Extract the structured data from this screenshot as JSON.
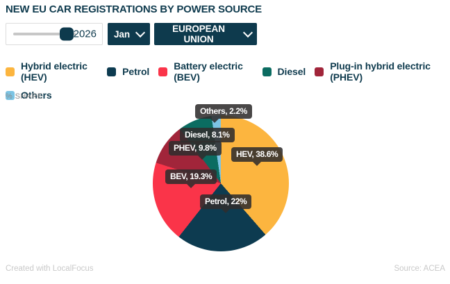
{
  "title": "NEW EU CAR REGISTRATIONS BY POWER SOURCE",
  "colors": {
    "accent": "#0E3A4D",
    "callout_bg": "rgba(48,45,46,0.88)"
  },
  "controls": {
    "year_slider": {
      "value": "2026"
    },
    "month_dropdown": {
      "value": "Jan"
    },
    "region_dropdown": {
      "value": "EUROPEAN UNION"
    }
  },
  "axis_note": "% SHARE",
  "chart_data": {
    "type": "pie",
    "title": "NEW EU CAR REGISTRATIONS BY POWER SOURCE",
    "value_unit": "% share",
    "start_angle_deg": 0,
    "direction": "clockwise",
    "legend_position": "top",
    "slices": [
      {
        "label": "Hybrid electric (HEV)",
        "short_label": "HEV",
        "value": 38.6,
        "color": "#FCB53F",
        "callout": "HEV, 38.6%"
      },
      {
        "label": "Petrol",
        "short_label": "Petrol",
        "value": 22,
        "color": "#0D3B50",
        "callout": "Petrol, 22%"
      },
      {
        "label": "Battery electric (BEV)",
        "short_label": "BEV",
        "value": 19.3,
        "color": "#FA3449",
        "callout": "BEV, 19.3%"
      },
      {
        "label": "Plug-in hybrid electric (PHEV)",
        "short_label": "PHEV",
        "value": 9.8,
        "color": "#A1253A",
        "callout": "PHEV, 9.8%"
      },
      {
        "label": "Diesel",
        "short_label": "Diesel",
        "value": 8.1,
        "color": "#0B6C61",
        "callout": "Diesel, 8.1%"
      },
      {
        "label": "Others",
        "short_label": "Others",
        "value": 2.2,
        "color": "#7CC4E4",
        "callout": "Others, 2.2%"
      }
    ]
  },
  "footer": {
    "left": "Created with LocalFocus",
    "right": "Source: ACEA"
  }
}
